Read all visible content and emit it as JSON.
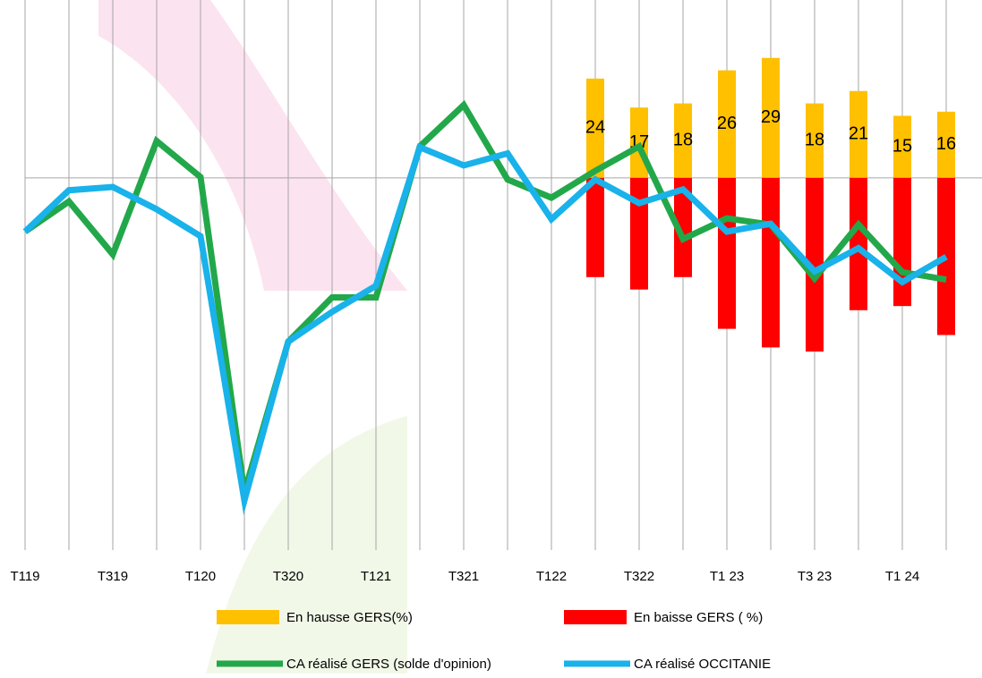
{
  "chart_data": {
    "type": "combo",
    "categories": [
      "T119",
      null,
      "T319",
      null,
      "T120",
      null,
      "T320",
      null,
      "T121",
      null,
      "T321",
      null,
      "T122",
      null,
      "T322",
      null,
      "T1 23",
      null,
      "T3 23",
      null,
      "T1 24",
      null
    ],
    "ylim": [
      -90,
      43
    ],
    "grid": "vertical",
    "legend": "bottom",
    "series": [
      {
        "name": "En hausse GERS(%)",
        "type": "bar",
        "color": "#ffc000",
        "data_labels": true,
        "values": [
          null,
          null,
          null,
          null,
          null,
          null,
          null,
          null,
          null,
          null,
          null,
          null,
          null,
          24,
          17,
          18,
          26,
          29,
          18,
          21,
          15,
          16
        ]
      },
      {
        "name": "En baisse GERS ( %)",
        "type": "bar",
        "color": "#ff0000",
        "data_labels": false,
        "values": [
          null,
          null,
          null,
          null,
          null,
          null,
          null,
          null,
          null,
          null,
          null,
          null,
          null,
          -24,
          -27,
          -24,
          -36.5,
          -41,
          -42,
          -32,
          -31,
          -38
        ]
      },
      {
        "name": "CA réalisé GERS  (solde d'opinion)",
        "type": "line",
        "color": "#22a84a",
        "values": [
          -13,
          -5.7,
          -18.5,
          8.9,
          0.2,
          -76,
          -39.6,
          -28.9,
          -28.9,
          7.6,
          17.6,
          -0.4,
          -4.8,
          1.7,
          7.6,
          -14.8,
          -9.8,
          -11.3,
          -24.3,
          -11.3,
          -22.8,
          -24.6
        ]
      },
      {
        "name": "CA réalisé OCCITANIE",
        "type": "line",
        "color": "#19b2ea",
        "values": [
          -13,
          -3,
          -2.2,
          -7.6,
          -14.1,
          -78,
          -39.6,
          -32.4,
          -26.1,
          7.4,
          3,
          5.9,
          -10,
          -0.4,
          -6.1,
          -2.8,
          -13,
          -11.1,
          -22.6,
          -17,
          -25.2,
          -19.1
        ]
      }
    ]
  }
}
